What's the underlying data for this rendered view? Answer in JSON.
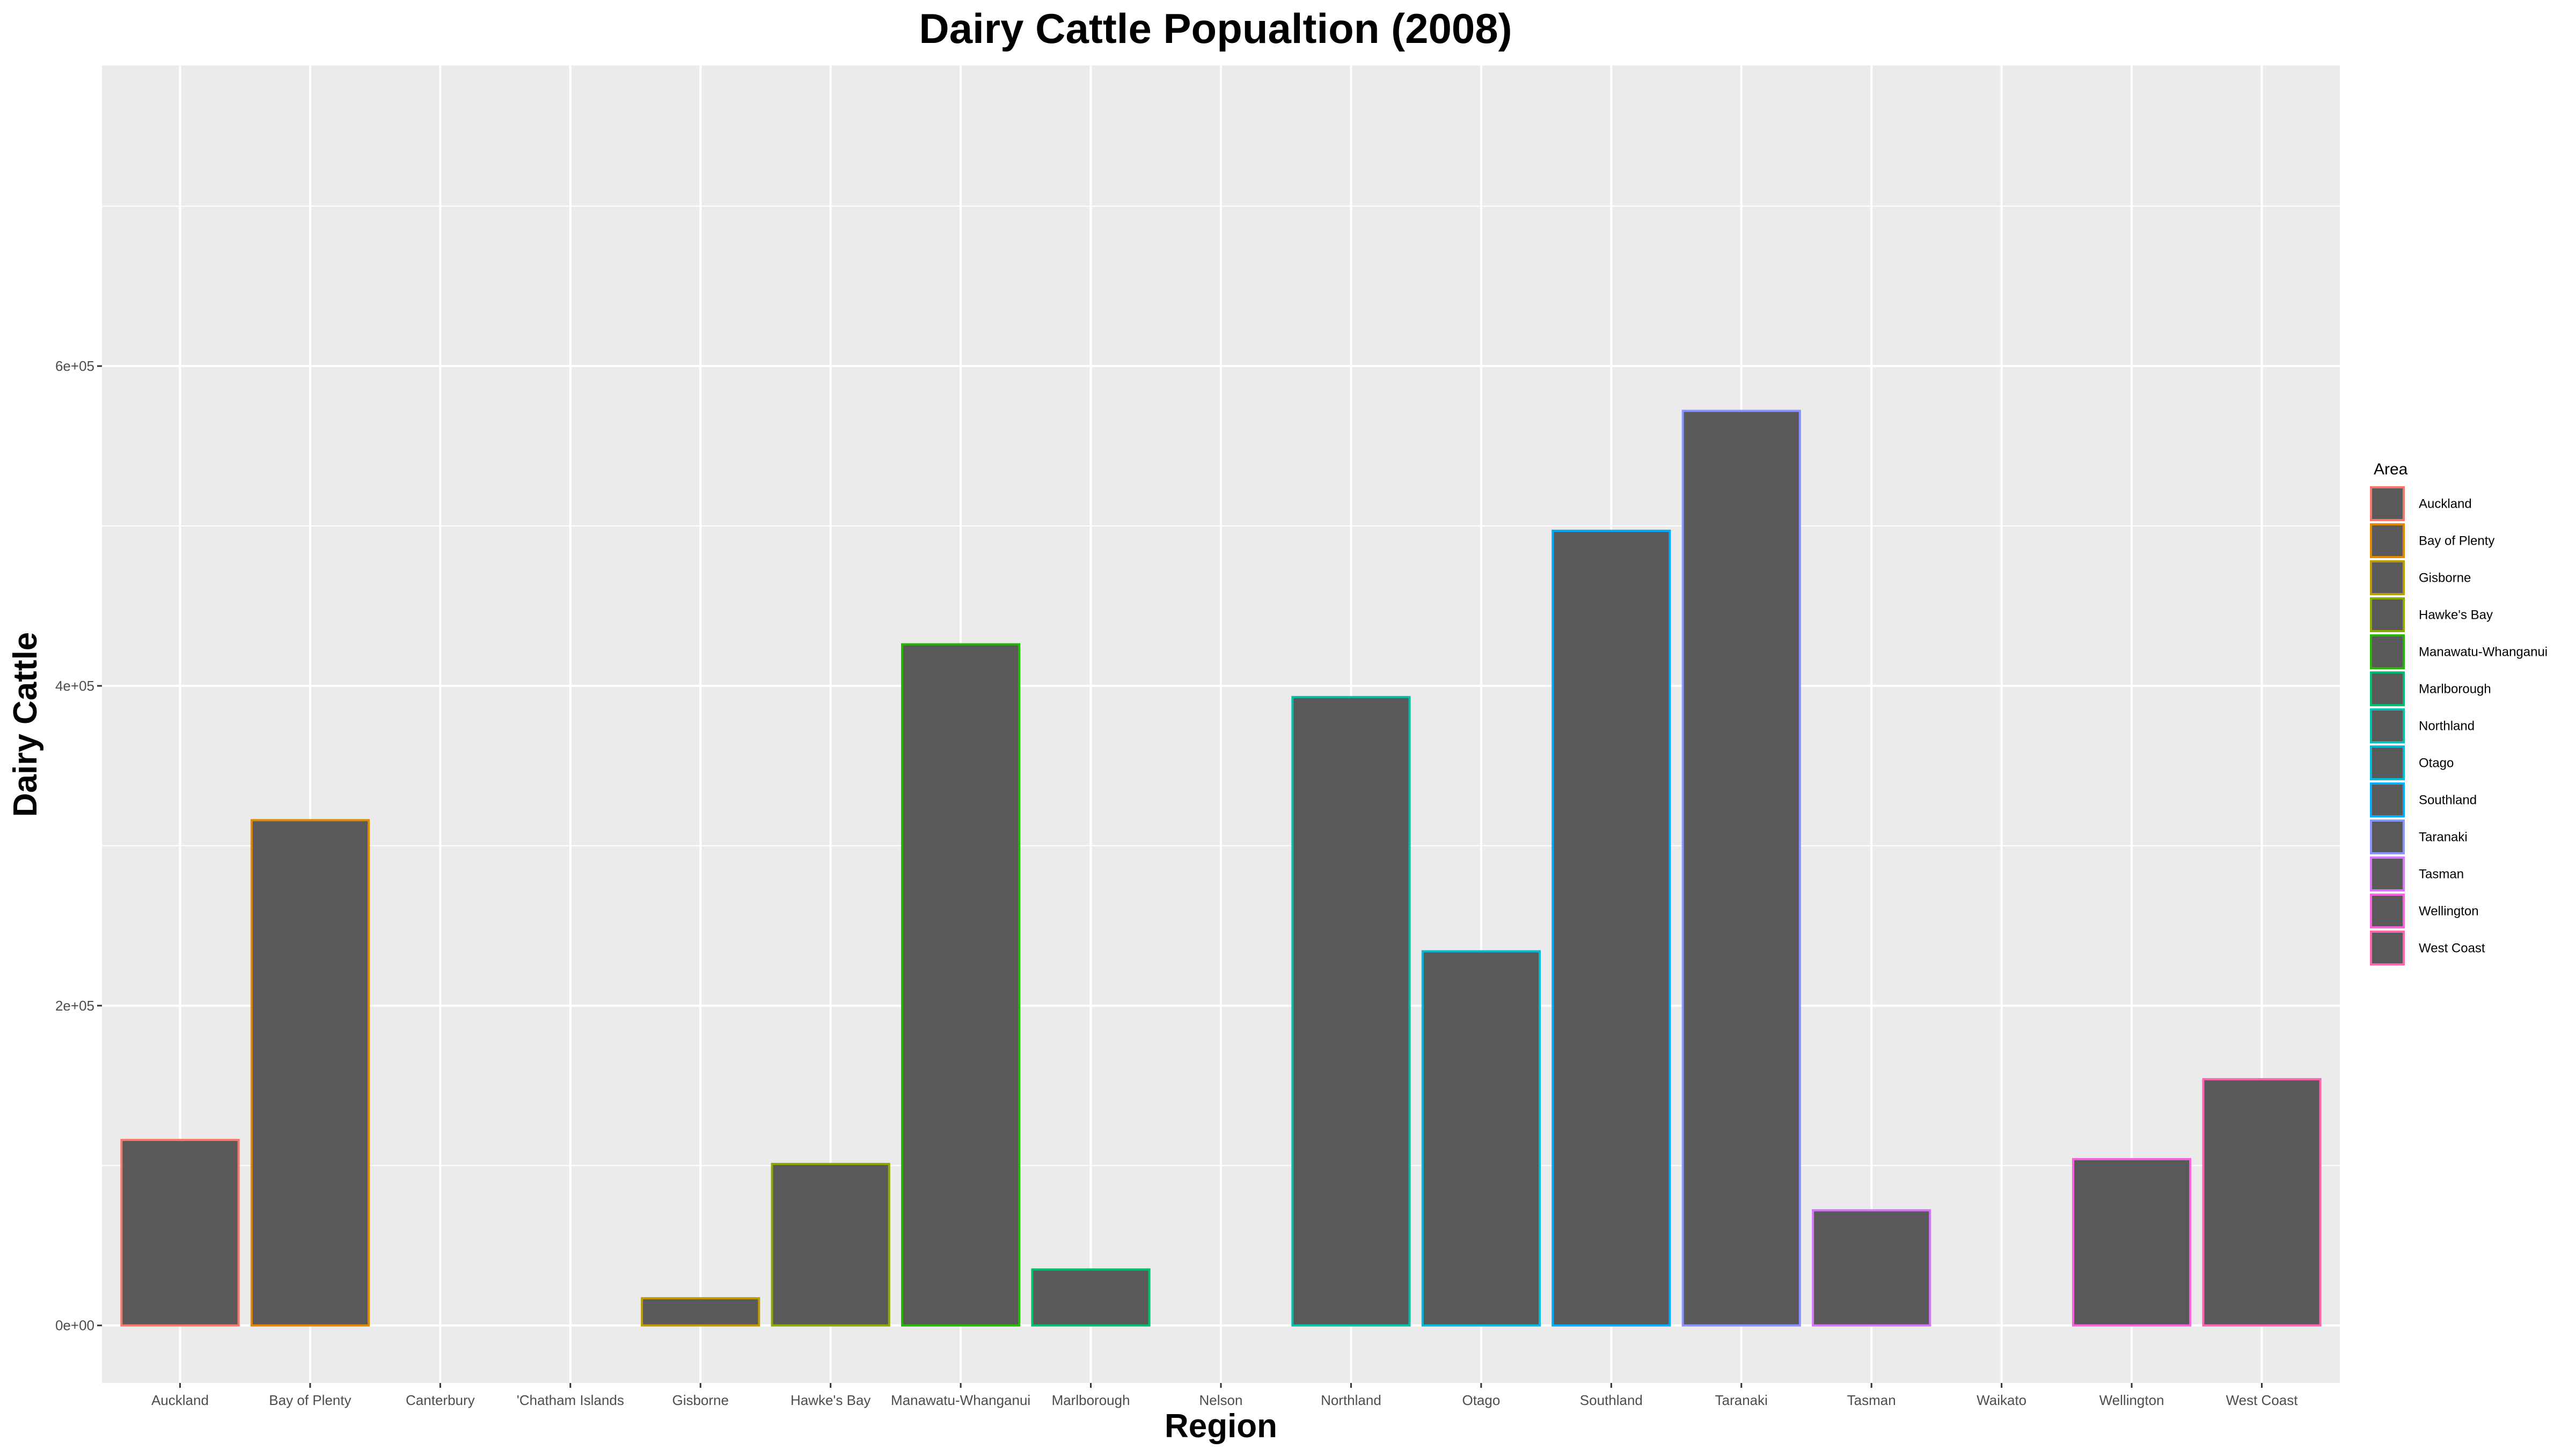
{
  "chart_data": {
    "type": "bar",
    "title": "Dairy Cattle Popualtion (2008)",
    "xlabel": "Region",
    "ylabel": "Dairy Cattle",
    "categories": [
      "Auckland",
      "Bay of Plenty",
      "Canterbury",
      "'Chatham Islands",
      "Gisborne",
      "Hawke's Bay",
      "Manawatu-Whanganui",
      "Marlborough",
      "Nelson",
      "Northland",
      "Otago",
      "Southland",
      "Taranaki",
      "Tasman",
      "Waikato",
      "Wellington",
      "West Coast"
    ],
    "values": [
      116000,
      316000,
      null,
      null,
      17000,
      101000,
      426000,
      35000,
      null,
      393000,
      234000,
      497000,
      572000,
      72000,
      null,
      104000,
      154000
    ],
    "bar_colors": [
      "#F8766D",
      "#E18A00",
      null,
      null,
      "#BE9C00",
      "#8CAB00",
      "#24B700",
      "#00BE70",
      null,
      "#00C1AB",
      "#00BBDA",
      "#00ACFC",
      "#8B93FF",
      "#D575FE",
      null,
      "#F962DD",
      "#FF65AC"
    ],
    "bar_fill": "#595959",
    "ylim": [
      -36000,
      788000
    ],
    "yticks": [
      0,
      200000,
      400000,
      600000
    ],
    "ytick_labels": [
      "0e+00",
      "2e+05",
      "4e+05",
      "6e+05"
    ],
    "grid": true,
    "panel_background": "#EBEBEB",
    "legend": {
      "title": "Area",
      "position": "right",
      "entries": [
        {
          "label": "Auckland",
          "color": "#F8766D"
        },
        {
          "label": "Bay of Plenty",
          "color": "#E18A00"
        },
        {
          "label": "Gisborne",
          "color": "#BE9C00"
        },
        {
          "label": "Hawke's Bay",
          "color": "#8CAB00"
        },
        {
          "label": "Manawatu-Whanganui",
          "color": "#24B700"
        },
        {
          "label": "Marlborough",
          "color": "#00BE70"
        },
        {
          "label": "Northland",
          "color": "#00C1AB"
        },
        {
          "label": "Otago",
          "color": "#00BBDA"
        },
        {
          "label": "Southland",
          "color": "#00ACFC"
        },
        {
          "label": "Taranaki",
          "color": "#8B93FF"
        },
        {
          "label": "Tasman",
          "color": "#D575FE"
        },
        {
          "label": "Wellington",
          "color": "#F962DD"
        },
        {
          "label": "West Coast",
          "color": "#FF65AC"
        }
      ]
    }
  }
}
